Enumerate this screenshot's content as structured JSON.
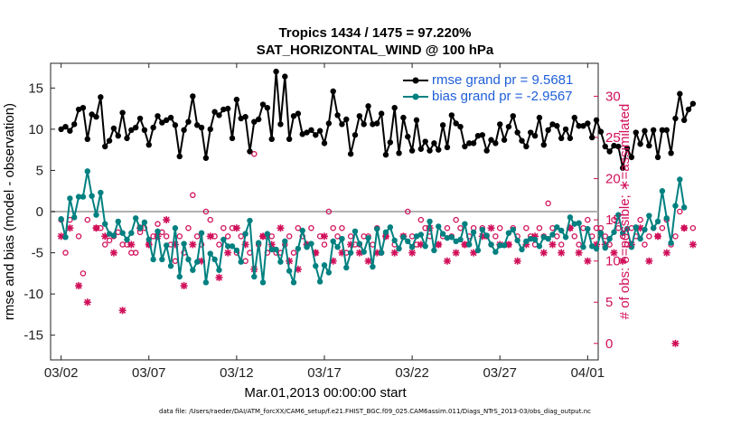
{
  "title_line1": "Tropics 1434 / 1475 = 97.220%",
  "title_line2": "SAT_HORIZONTAL_WIND @ 100 hPa",
  "footer": "data file: /Users/raeder/DAI/ATM_forcXX/CAM6_setup/f.e21.FHIST_BGC.f09_025.CAM6assim.011/Diags_NTrS_2013-03/obs_diag_output.nc",
  "colors": {
    "rmse": "#000000",
    "bias": "#008080",
    "obs": "#d0105a",
    "legend_text": "#1f5fd8",
    "zero_line": "#b0b0b0"
  },
  "chart_data": {
    "type": "line",
    "title": "Tropics 1434 / 1475 = 97.220%  SAT_HORIZONTAL_WIND @ 100 hPa",
    "xlabel": "Mar.01,2013 00:00:00 start",
    "ylabel": "rmse and bias (model - observation)",
    "y2label": "# of obs: o=possible; ∗=assimilated",
    "xlim": [
      0.4,
      31.6
    ],
    "ylim": [
      -18,
      18
    ],
    "y2lim": [
      -2,
      34
    ],
    "xticks": [
      1,
      6,
      11,
      16,
      21,
      26,
      31
    ],
    "xtick_labels": [
      "03/02",
      "03/07",
      "03/12",
      "03/17",
      "03/22",
      "03/27",
      "04/01"
    ],
    "yticks": [
      -15,
      -10,
      -5,
      0,
      5,
      10,
      15
    ],
    "y2ticks": [
      0,
      5,
      10,
      15,
      20,
      25,
      30
    ],
    "legend": [
      "rmse grand pr = 9.5681",
      "bias grand pr = -2.9567"
    ],
    "legend_position": "top-right",
    "x_step_days": 0.25,
    "series": [
      {
        "name": "rmse grand pr = 9.5681",
        "axis": "left",
        "values": [
          10,
          10.3,
          9.8,
          10.6,
          12.4,
          12.6,
          8.8,
          11.8,
          11.5,
          13.9,
          7.9,
          8.6,
          10.1,
          9.2,
          12,
          8.9,
          9.9,
          10.2,
          11.3,
          9.9,
          8.1,
          10.2,
          11.6,
          10.8,
          11.1,
          11.4,
          10.5,
          6.7,
          9.9,
          10.9,
          14,
          10.5,
          10.2,
          6.5,
          10,
          12.1,
          11.7,
          12.4,
          12.5,
          8.9,
          13.6,
          11.3,
          11.5,
          7.3,
          10.9,
          11.2,
          13,
          12.6,
          8.8,
          17,
          10.6,
          16.4,
          8.8,
          11.6,
          11.9,
          9.4,
          9.6,
          9.9,
          9.3,
          9.8,
          8.3,
          10.7,
          14.6,
          11.7,
          10.6,
          11.2,
          7,
          9.3,
          11.6,
          10.6,
          12.8,
          10.6,
          10.7,
          11.9,
          6.9,
          8.4,
          12.6,
          7.1,
          11.4,
          9.1,
          7.4,
          11.1,
          7.6,
          8.5,
          7.4,
          8.3,
          7.5,
          10.5,
          7.8,
          11.7,
          10.7,
          10.3,
          7.9,
          8.3,
          8.3,
          9.2,
          9.3,
          7.4,
          8.7,
          8.3,
          10.6,
          8.7,
          10.3,
          11.6,
          9.6,
          8.6,
          7.9,
          9.6,
          9.2,
          11.4,
          8.1,
          9.9,
          10.6,
          10.4,
          8.9,
          10,
          8.9,
          11.4,
          10.4,
          10.4,
          10.7,
          9,
          11.1,
          9.7,
          7.9,
          7.3,
          8,
          7.9,
          5.3,
          7.7,
          6.6,
          9.6,
          8.2,
          9.8,
          8,
          9.9,
          6.6,
          9.9,
          9.9,
          7.1,
          11.3,
          14.3,
          11.1,
          12.4,
          13.1
        ]
      },
      {
        "name": "bias grand pr = -2.9567",
        "axis": "left",
        "values": [
          -0.9,
          -3.1,
          1.6,
          -0.7,
          1.8,
          1.8,
          4.9,
          1.9,
          -0.4,
          2.3,
          -1.5,
          -2.7,
          -2.9,
          -1.2,
          -2.6,
          -3.4,
          -2.6,
          -0.8,
          -2,
          -1.3,
          -3.4,
          -5.8,
          -2.4,
          -5.8,
          -4.1,
          -6.6,
          -2,
          -7.9,
          -3.9,
          -5.8,
          -7.1,
          -6.1,
          -2.6,
          -8.6,
          -5.1,
          -5.8,
          -7.1,
          -3.4,
          -4.2,
          -4.2,
          -4.7,
          -6.1,
          -2.7,
          -1.1,
          -7.9,
          -3.8,
          -8.6,
          -2.7,
          -4.6,
          -4.6,
          -6.1,
          -3.6,
          -7.2,
          -8.6,
          -4.5,
          -2.3,
          -4.3,
          -3.9,
          -6.6,
          -8.5,
          -6.5,
          -7.4,
          -3.6,
          -4.3,
          -3.3,
          -6.8,
          -5,
          -2.4,
          -3.9,
          -4.9,
          -3.2,
          -6.7,
          -2.1,
          -5,
          -2.5,
          -1.9,
          -3.5,
          -4.5,
          -3.1,
          -3.6,
          -4.3,
          -3,
          -2.8,
          -4.2,
          -1.2,
          -4.7,
          -1.8,
          -2.7,
          -3.2,
          -3.1,
          -3.6,
          -3.4,
          -1.5,
          -4,
          -2.5,
          -4.7,
          -2.2,
          -2.9,
          -4,
          -4.9,
          -4.1,
          -4.1,
          -2.6,
          -2.2,
          -3.5,
          -4.6,
          -3.6,
          -3.3,
          -3.4,
          -4.2,
          -3.1,
          -3.3,
          -2.8,
          -1.9,
          -2.3,
          -3.1,
          -0.7,
          -1.5,
          -1.4,
          -4.3,
          -2.1,
          -4.2,
          -4.5,
          -2.6,
          -4.4,
          -3.3,
          -2.5,
          -0.4,
          -2.6,
          -2.1,
          -4.3,
          -1.9,
          -3.3,
          -2.2,
          -0.5,
          -2,
          -1.2,
          2.5,
          -0.8,
          -3.8,
          0.7,
          3.9,
          0.5
        ]
      },
      {
        "name": "# of obs possible",
        "axis": "right",
        "marker": "o",
        "values": [
          15,
          11,
          15,
          15,
          13,
          8.5,
          15,
          15,
          14,
          14,
          12,
          12.5,
          13,
          13.5,
          12,
          12,
          11,
          11,
          13.5,
          14,
          12,
          13,
          14.5,
          13.5,
          13,
          12,
          10,
          13,
          11,
          14,
          18,
          13,
          12,
          16,
          15,
          13,
          12,
          14,
          13,
          14,
          11,
          13,
          10,
          11,
          23,
          12,
          13,
          11,
          13,
          11,
          11,
          12,
          13,
          11,
          14,
          13,
          12,
          14,
          11,
          13,
          12,
          16,
          14,
          13,
          14,
          11,
          13,
          12,
          12,
          13,
          13,
          12,
          14,
          11,
          13,
          15,
          12,
          15,
          13,
          16,
          13,
          12,
          15,
          14,
          13,
          15,
          12,
          13,
          14,
          13,
          15,
          14,
          12,
          13,
          14,
          15,
          14,
          13,
          12,
          13,
          14,
          15,
          12,
          14,
          13,
          15,
          14,
          13,
          12,
          14,
          13,
          17,
          14,
          13,
          12,
          15,
          14,
          13,
          12,
          14,
          15,
          13,
          14,
          14,
          13,
          12,
          15,
          14,
          13,
          12,
          14,
          13,
          15,
          12,
          13,
          14,
          13,
          14,
          15,
          12,
          13,
          16,
          14,
          15,
          14
        ]
      },
      {
        "name": "# of obs assimilated",
        "axis": "right",
        "marker": "*",
        "values": [
          13,
          12,
          14,
          10,
          7,
          10,
          5,
          12,
          14,
          14,
          13,
          12,
          11,
          10,
          4,
          12,
          12,
          13,
          14,
          7,
          12,
          12,
          13,
          10,
          15,
          19,
          12,
          13,
          7,
          10,
          12,
          9,
          10,
          14,
          13,
          11,
          8,
          12,
          11,
          13,
          14,
          10,
          12,
          11,
          9,
          8,
          13,
          11,
          12,
          13,
          14,
          12,
          10,
          11,
          9,
          14,
          12,
          13,
          11,
          12,
          13,
          14,
          10,
          12,
          11,
          13,
          12,
          9,
          11,
          13,
          10,
          12,
          11,
          14,
          13,
          12,
          11,
          10,
          13,
          12,
          11,
          10,
          12,
          13,
          14,
          11,
          12,
          13,
          10,
          12,
          11,
          13,
          12,
          14,
          11,
          10,
          13,
          12,
          14,
          11,
          12,
          13,
          12,
          11,
          10,
          13,
          12,
          14,
          13,
          12,
          11,
          10,
          12,
          13,
          11,
          12,
          14,
          13,
          11,
          12,
          10,
          13,
          12,
          11,
          12,
          13,
          11,
          12,
          10,
          11,
          12,
          13,
          14,
          11,
          10,
          12,
          13,
          12,
          11,
          10,
          0,
          12,
          14,
          13,
          12
        ]
      }
    ],
    "note": "values sampled at 0.25-day intervals from x=1 (Mar 02); representative values read from the plot"
  }
}
